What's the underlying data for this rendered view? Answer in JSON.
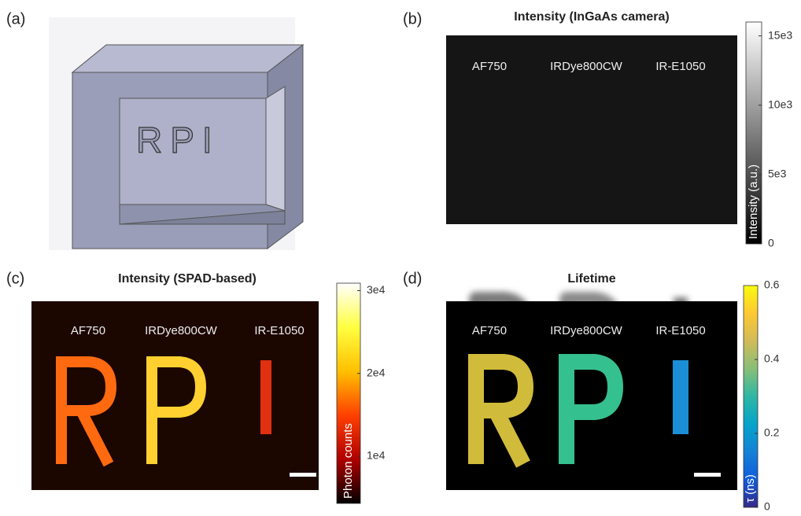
{
  "panels": [
    {
      "label": "(a)",
      "model_text": "RPI"
    },
    {
      "label": "(b)",
      "title": "Intensity (InGaAs camera)",
      "image_labels": [
        "AF750",
        "IRDye800CW",
        "IR-E1050"
      ],
      "colorbar": {
        "label": "Intensity (a.u.)",
        "lim": [
          0,
          16000
        ],
        "ticks": [
          0,
          {
            "value": 5000,
            "label": "5e3"
          },
          {
            "value": 10000,
            "label": "10e3"
          },
          {
            "value": 15000,
            "label": "15e3"
          }
        ],
        "colormap": [
          "#000000",
          "#ffffff"
        ]
      }
    },
    {
      "label": "(c)",
      "title": "Intensity (SPAD-based)",
      "image_labels": [
        "AF750",
        "IRDye800CW",
        "IR-E1050"
      ],
      "colorbar": {
        "label": "Photon counts",
        "lim": [
          4300,
          30900
        ],
        "ticks": [
          {
            "value": 10000,
            "label": "1e4"
          },
          {
            "value": 20000,
            "label": "2e4"
          },
          {
            "value": 30000,
            "label": "3e4"
          }
        ],
        "colormap": [
          "#000000",
          "#b00000",
          "#ff4000",
          "#ffc000",
          "#ffff40",
          "#ffffff"
        ]
      }
    },
    {
      "label": "(d)",
      "title": "Lifetime",
      "image_labels": [
        "AF750",
        "IRDye800CW",
        "IR-E1050"
      ],
      "colorbar": {
        "label": "τ (ns)",
        "lim": [
          0,
          0.6
        ],
        "ticks": [
          0,
          0.2,
          0.4,
          0.6
        ],
        "colormap": [
          "#352a87",
          "#0f5cdd",
          "#1481d6",
          "#06a4ca",
          "#2eb7a4",
          "#87bf77",
          "#d1bb59",
          "#fec832",
          "#f9fb0e"
        ]
      }
    }
  ]
}
